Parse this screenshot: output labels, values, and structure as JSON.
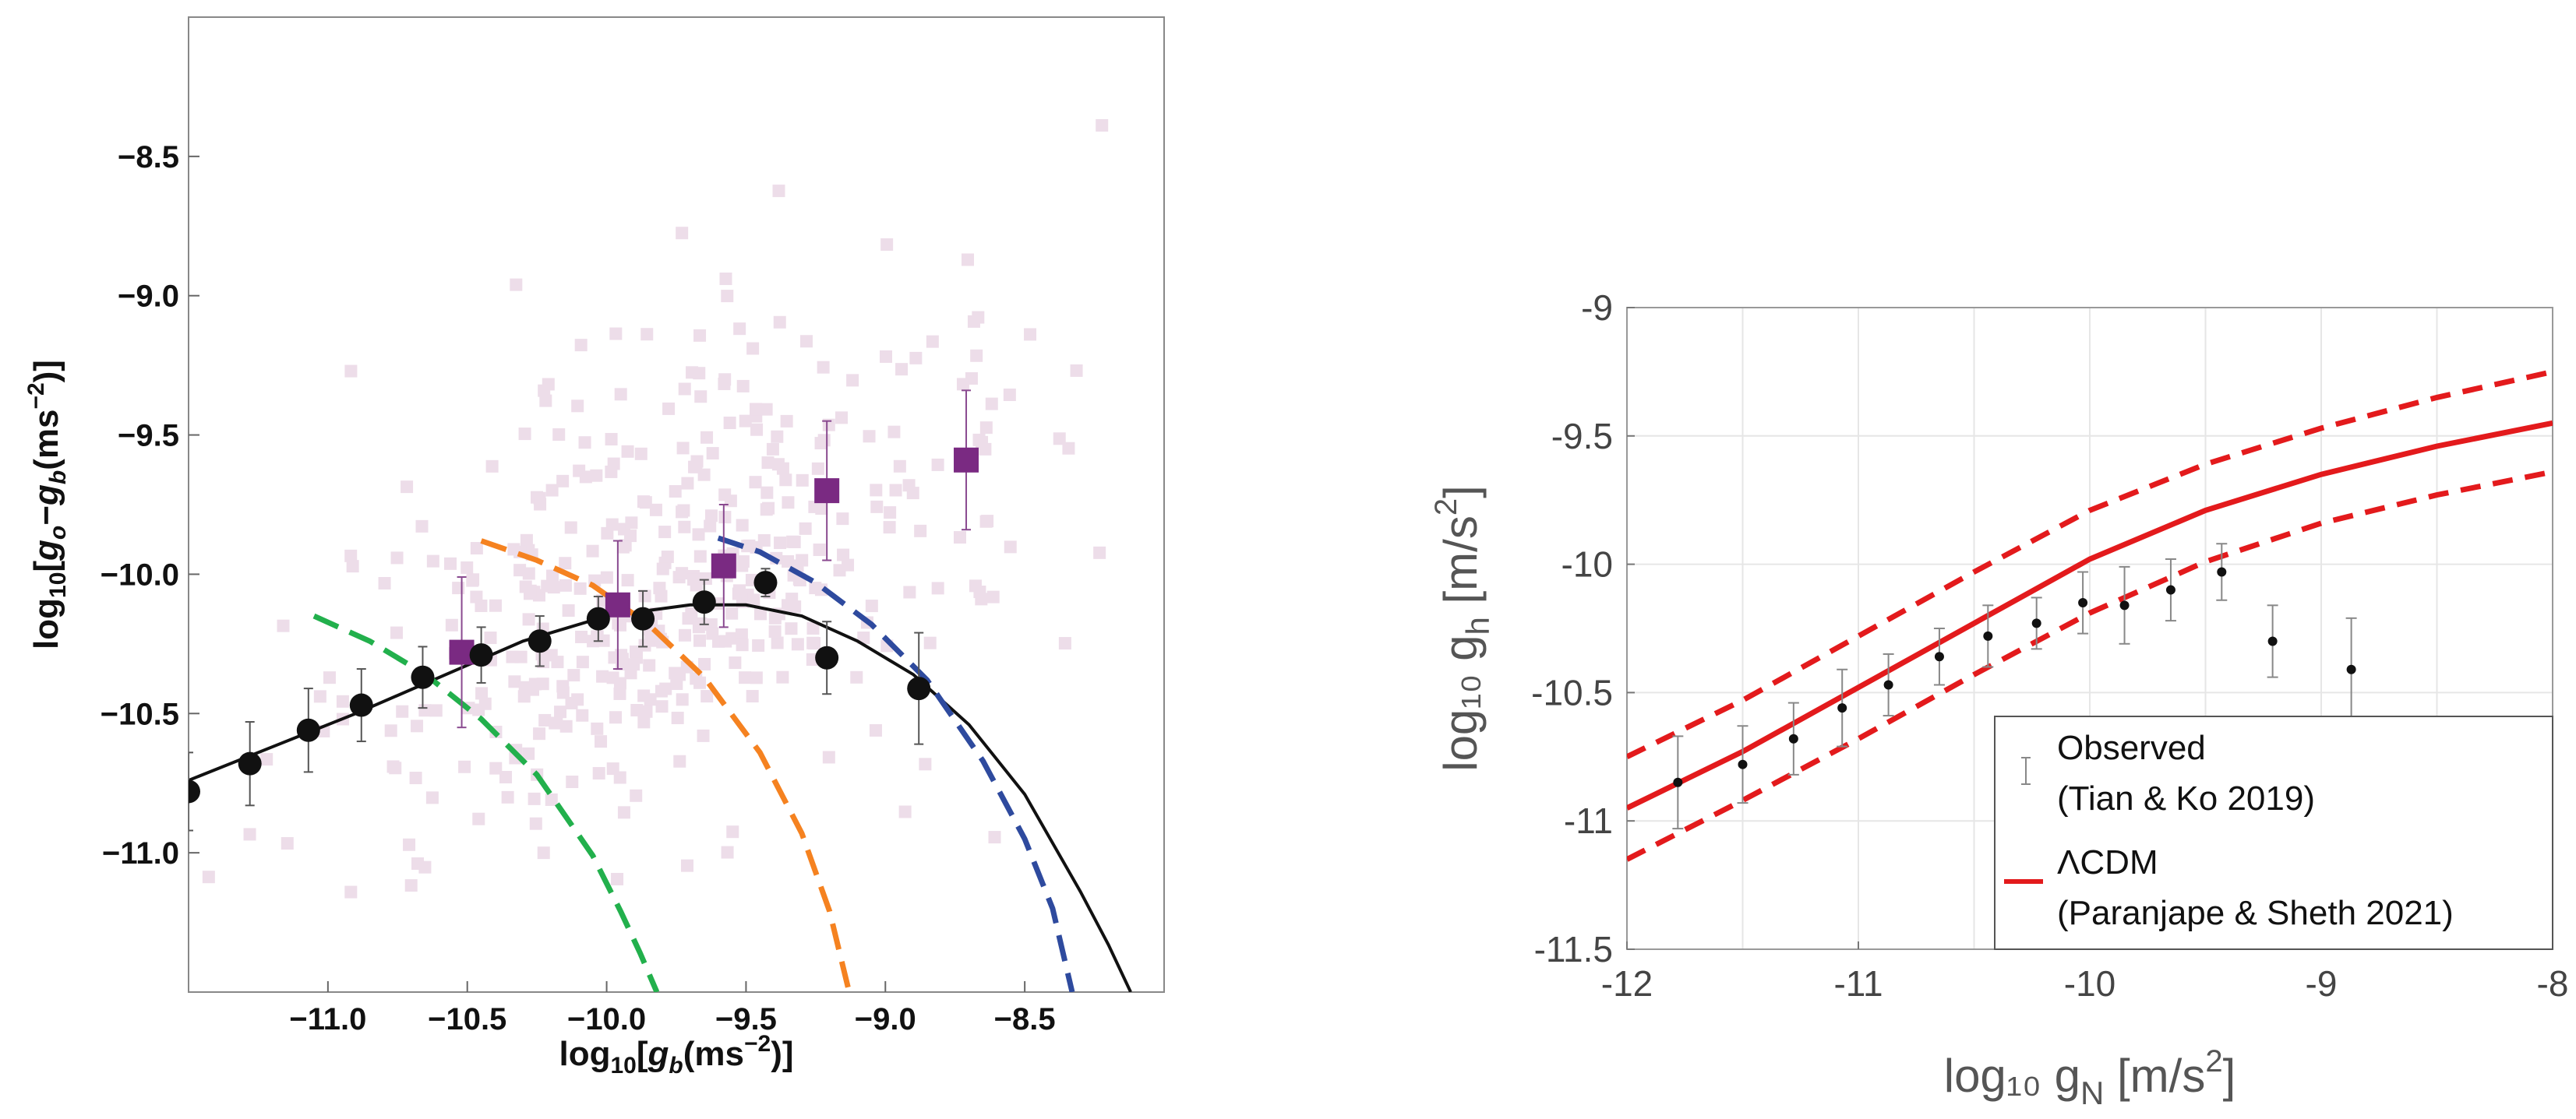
{
  "chart_data": [
    {
      "type": "scatter",
      "title": "",
      "xlabel": "log10[gb(ms−2)]",
      "ylabel": "log10[go−gb(ms−2)]",
      "xlim": [
        -11.5,
        -8.0
      ],
      "ylim": [
        -11.5,
        -8.0
      ],
      "x_ticks": [
        -11.0,
        -10.5,
        -10.0,
        -9.5,
        -9.0,
        -8.5
      ],
      "x_tick_labels": [
        "−11.0",
        "−10.5",
        "−10.0",
        "−9.5",
        "−9.0",
        "−8.5"
      ],
      "y_ticks": [
        -11.0,
        -10.5,
        -10.0,
        -9.5,
        -9.0,
        -8.5
      ],
      "y_tick_labels": [
        "−11.0",
        "−10.5",
        "−10.0",
        "−9.5",
        "−9.0",
        "−8.5"
      ],
      "colors": {
        "black": "#111111",
        "purple": "#7a2a82",
        "green": "#22b04c",
        "orange": "#f58220",
        "blue": "#2e4a9e",
        "background_points": "#eddde9"
      },
      "series": [
        {
          "name": "binned black points",
          "marker": "circle",
          "x": [
            -11.5,
            -11.28,
            -11.07,
            -10.88,
            -10.66,
            -10.45,
            -10.24,
            -10.03,
            -9.87,
            -9.65,
            -9.43,
            -9.21,
            -8.88
          ],
          "y": [
            -10.78,
            -10.68,
            -10.56,
            -10.47,
            -10.37,
            -10.29,
            -10.24,
            -10.16,
            -10.16,
            -10.1,
            -10.03,
            -10.3,
            -10.41
          ],
          "err": [
            0.14,
            0.15,
            0.15,
            0.13,
            0.11,
            0.1,
            0.09,
            0.08,
            0.1,
            0.08,
            0.05,
            0.13,
            0.2
          ]
        },
        {
          "name": "purple squares",
          "marker": "square",
          "x": [
            -10.52,
            -9.96,
            -9.58,
            -9.21,
            -8.71
          ],
          "y": [
            -10.28,
            -10.11,
            -9.97,
            -9.7,
            -9.59
          ],
          "err": [
            0.27,
            0.23,
            0.22,
            0.25,
            0.25
          ]
        },
        {
          "name": "black curve",
          "style": "solid",
          "x": [
            -11.5,
            -11.2,
            -10.9,
            -10.6,
            -10.3,
            -10.0,
            -9.7,
            -9.5,
            -9.3,
            -9.1,
            -8.9,
            -8.7,
            -8.5,
            -8.3,
            -8.2,
            -8.12
          ],
          "y": [
            -10.74,
            -10.62,
            -10.5,
            -10.37,
            -10.24,
            -10.15,
            -10.11,
            -10.11,
            -10.15,
            -10.24,
            -10.36,
            -10.54,
            -10.79,
            -11.14,
            -11.33,
            -11.5
          ]
        },
        {
          "name": "green dashed",
          "x": [
            -11.05,
            -10.85,
            -10.65,
            -10.45,
            -10.25,
            -10.05,
            -9.95,
            -9.88,
            -9.82
          ],
          "y": [
            -10.15,
            -10.24,
            -10.36,
            -10.52,
            -10.72,
            -11.01,
            -11.21,
            -11.36,
            -11.5
          ]
        },
        {
          "name": "orange dashed",
          "x": [
            -10.45,
            -10.25,
            -10.05,
            -9.85,
            -9.65,
            -9.45,
            -9.3,
            -9.2,
            -9.13
          ],
          "y": [
            -9.88,
            -9.95,
            -10.04,
            -10.18,
            -10.37,
            -10.64,
            -10.93,
            -11.21,
            -11.5
          ]
        },
        {
          "name": "blue dashed",
          "x": [
            -9.6,
            -9.45,
            -9.25,
            -9.05,
            -8.85,
            -8.65,
            -8.5,
            -8.4,
            -8.33
          ],
          "y": [
            -9.87,
            -9.92,
            -10.03,
            -10.18,
            -10.38,
            -10.67,
            -10.95,
            -11.2,
            -11.5
          ]
        }
      ]
    },
    {
      "type": "line",
      "title": "",
      "xlabel": "log₁₀ g",
      "xlabel_sub": "N",
      "xlabel_unit": " [m/s",
      "xlabel_sup": "2",
      "xlabel_end": "]",
      "ylabel": "log₁₀ g",
      "ylabel_sub": "h",
      "ylabel_unit": " [m/s",
      "ylabel_sup": "2",
      "ylabel_end": "]",
      "xlim": [
        -12,
        -8
      ],
      "ylim": [
        -11.5,
        -9
      ],
      "x_ticks": [
        -12,
        -11,
        -10,
        -9,
        -8
      ],
      "x_tick_labels": [
        "-12",
        "-11",
        "-10",
        "-9",
        "-8"
      ],
      "y_ticks": [
        -11.5,
        -11,
        -10.5,
        -10,
        -9.5,
        -9
      ],
      "y_tick_labels": [
        "-11.5",
        "-11",
        "-10.5",
        "-10",
        "-9.5",
        "-9"
      ],
      "grid": true,
      "legend": {
        "position": "bottom-right",
        "entries": [
          {
            "line1": "Observed",
            "line2": "(Tian & Ko 2019)",
            "marker": "errorbar"
          },
          {
            "line1": "ΛCDM",
            "line2": "(Paranjape & Sheth 2021)",
            "marker": "line"
          }
        ]
      },
      "colors": {
        "lcdm": "#e31a1c",
        "observed": "#111111",
        "errorbar": "#888888",
        "grid": "#e6e6e6"
      },
      "series": [
        {
          "name": "Observed (Tian & Ko 2019)",
          "marker": "point",
          "x": [
            -11.78,
            -11.5,
            -11.28,
            -11.07,
            -10.87,
            -10.65,
            -10.44,
            -10.23,
            -10.03,
            -9.85,
            -9.65,
            -9.43,
            -9.21,
            -8.87
          ],
          "y": [
            -10.85,
            -10.78,
            -10.68,
            -10.56,
            -10.47,
            -10.36,
            -10.28,
            -10.23,
            -10.15,
            -10.16,
            -10.1,
            -10.03,
            -10.3,
            -10.41
          ],
          "err": [
            0.18,
            0.15,
            0.14,
            0.15,
            0.12,
            0.11,
            0.12,
            0.1,
            0.12,
            0.15,
            0.12,
            0.11,
            0.14,
            0.2
          ]
        },
        {
          "name": "ΛCDM (Paranjape & Sheth 2021)",
          "style": "solid",
          "x": [
            -12,
            -11.5,
            -11,
            -10.5,
            -10,
            -9.5,
            -9,
            -8.5,
            -8
          ],
          "y": [
            -10.95,
            -10.73,
            -10.48,
            -10.23,
            -9.98,
            -9.79,
            -9.65,
            -9.54,
            -9.45
          ]
        },
        {
          "name": "ΛCDM upper",
          "style": "dashed",
          "x": [
            -12,
            -11.5,
            -11,
            -10.5,
            -10,
            -9.5,
            -9,
            -8.5,
            -8
          ],
          "y": [
            -10.75,
            -10.53,
            -10.28,
            -10.03,
            -9.79,
            -9.61,
            -9.47,
            -9.35,
            -9.25
          ]
        },
        {
          "name": "ΛCDM lower",
          "style": "dashed",
          "x": [
            -12,
            -11.5,
            -11,
            -10.5,
            -10,
            -9.5,
            -9,
            -8.5,
            -8
          ],
          "y": [
            -11.15,
            -10.92,
            -10.68,
            -10.43,
            -10.19,
            -9.99,
            -9.84,
            -9.73,
            -9.64
          ]
        }
      ]
    }
  ]
}
